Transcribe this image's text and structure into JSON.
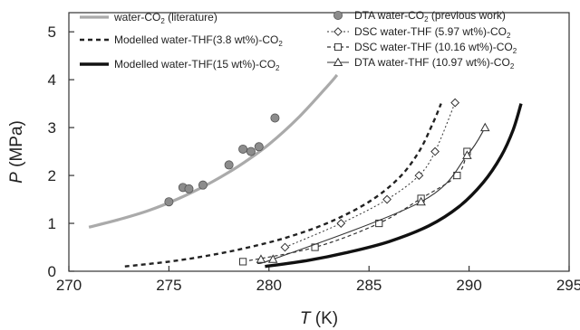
{
  "chart_data": {
    "type": "line",
    "xlabel": {
      "var": "T",
      "unit": " (K)"
    },
    "ylabel": {
      "var": "P",
      "unit": " (MPa)"
    },
    "xlim": [
      270,
      295
    ],
    "ylim": [
      0,
      5.4
    ],
    "xticks": [
      "270",
      "275",
      "280",
      "285",
      "290",
      "295"
    ],
    "yticks": [
      "0",
      "1",
      "2",
      "3",
      "4",
      "5"
    ],
    "grid": false,
    "legend_left": [
      {
        "label": "water-CO",
        "sub": "2",
        "tail": " (literature)",
        "series": "lit"
      },
      {
        "label": "Modelled water-THF(3.8 wt%)-CO",
        "sub": "2",
        "tail": "",
        "series": "m38"
      },
      {
        "label": "Modelled water-THF(15 wt%)-CO",
        "sub": "2",
        "tail": "",
        "series": "m15"
      }
    ],
    "legend_right": [
      {
        "label": "DTA water-CO",
        "sub": "2",
        "tail": " (previous work)",
        "series": "dta_co2"
      },
      {
        "label": "DSC water-THF (5.97 wt%)-CO",
        "sub": "2",
        "tail": "",
        "series": "dsc597"
      },
      {
        "label": "DSC water-THF (10.16 wt%)-CO",
        "sub": "2",
        "tail": "",
        "series": "dsc1016"
      },
      {
        "label": "DTA water-THF (10.97 wt%)-CO",
        "sub": "2",
        "tail": "",
        "series": "dta1097"
      }
    ],
    "series": [
      {
        "id": "lit",
        "kind": "curve",
        "color": "#aaaaaa",
        "width": 3.2,
        "dash": "",
        "points": [
          [
            271,
            0.92
          ],
          [
            272.5,
            1.08
          ],
          [
            274,
            1.27
          ],
          [
            275.5,
            1.52
          ],
          [
            277,
            1.83
          ],
          [
            278.5,
            2.2
          ],
          [
            280,
            2.65
          ],
          [
            281.5,
            3.22
          ],
          [
            283,
            3.9
          ],
          [
            283.4,
            4.1
          ]
        ]
      },
      {
        "id": "m38",
        "kind": "curve",
        "color": "#222222",
        "width": 2.4,
        "dash": "5,4",
        "points": [
          [
            272.8,
            0.1
          ],
          [
            275,
            0.2
          ],
          [
            277,
            0.33
          ],
          [
            279,
            0.5
          ],
          [
            281,
            0.72
          ],
          [
            283,
            1.02
          ],
          [
            285,
            1.45
          ],
          [
            286.5,
            1.95
          ],
          [
            287.5,
            2.5
          ],
          [
            288.2,
            3.1
          ],
          [
            288.6,
            3.5
          ]
        ]
      },
      {
        "id": "m15",
        "kind": "curve",
        "color": "#111111",
        "width": 3.4,
        "dash": "",
        "points": [
          [
            279.8,
            0.1
          ],
          [
            282,
            0.23
          ],
          [
            284,
            0.4
          ],
          [
            286,
            0.62
          ],
          [
            288,
            0.95
          ],
          [
            289.5,
            1.35
          ],
          [
            290.7,
            1.85
          ],
          [
            291.6,
            2.4
          ],
          [
            292.2,
            2.95
          ],
          [
            292.6,
            3.5
          ]
        ]
      },
      {
        "id": "dta_co2",
        "kind": "markers",
        "marker": "circle",
        "points": [
          [
            275,
            1.45
          ],
          [
            275.7,
            1.75
          ],
          [
            276,
            1.72
          ],
          [
            276.7,
            1.8
          ],
          [
            278,
            2.22
          ],
          [
            278.7,
            2.55
          ],
          [
            279.1,
            2.5
          ],
          [
            279.5,
            2.6
          ],
          [
            280.3,
            3.2
          ]
        ]
      },
      {
        "id": "dsc597",
        "kind": "curve+markers",
        "marker": "diamond",
        "color": "#333333",
        "width": 1,
        "dash": "2,2.5",
        "points": [
          [
            280.8,
            0.5
          ],
          [
            283.6,
            1.0
          ],
          [
            285.9,
            1.5
          ],
          [
            287.5,
            2.0
          ],
          [
            288.3,
            2.5
          ],
          [
            289.3,
            3.52
          ]
        ]
      },
      {
        "id": "dsc1016",
        "kind": "curve+markers",
        "marker": "square",
        "color": "#333333",
        "width": 1.2,
        "dash": "4,3",
        "points": [
          [
            278.7,
            0.2
          ],
          [
            282.3,
            0.5
          ],
          [
            285.5,
            1.0
          ],
          [
            287.6,
            1.52
          ],
          [
            289.4,
            2.0
          ],
          [
            289.9,
            2.5
          ]
        ]
      },
      {
        "id": "dta1097",
        "kind": "curve+markers",
        "marker": "triangle",
        "color": "#333333",
        "width": 1.1,
        "dash": "",
        "points": [
          [
            279.6,
            0.25
          ],
          [
            280.2,
            0.25
          ],
          [
            287.6,
            1.45
          ],
          [
            289.9,
            2.42
          ],
          [
            290.8,
            3.0
          ]
        ]
      }
    ]
  }
}
